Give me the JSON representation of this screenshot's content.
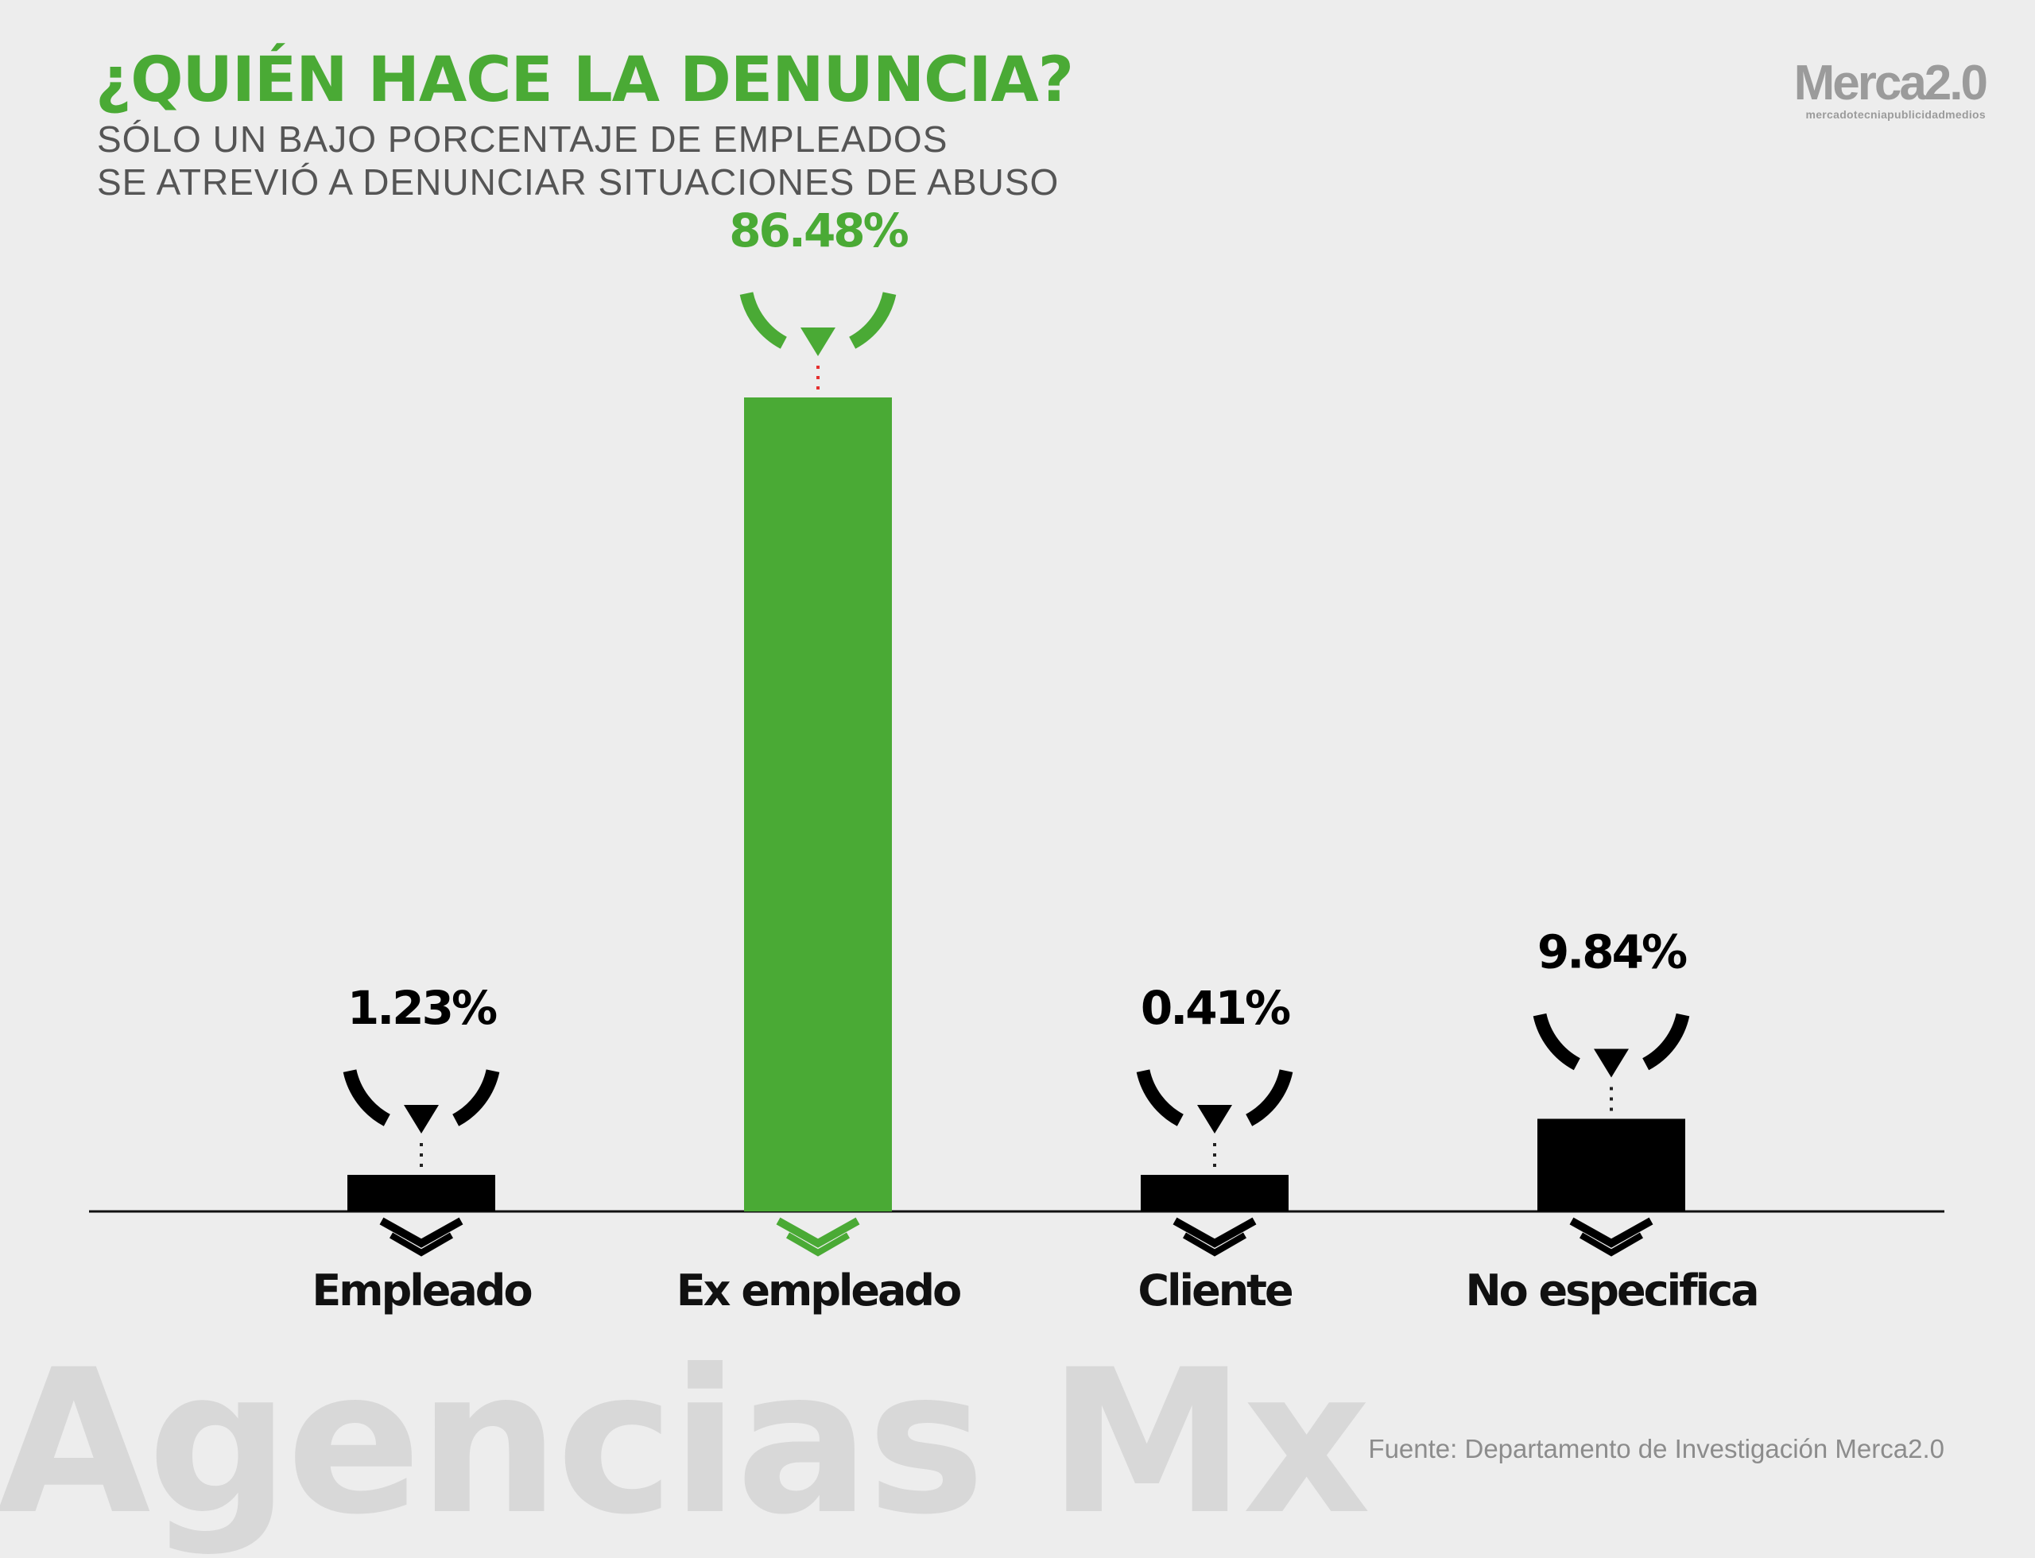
{
  "header": {
    "title": "¿QUIÉN HACE LA DENUNCIA?",
    "subtitle_lines": [
      "SÓLO UN BAJO PORCENTAJE DE EMPLEADOS",
      "SE ATREVIÓ A DENUNCIAR SITUACIONES DE ABUSO"
    ]
  },
  "logo": {
    "name": "Merca2.0",
    "tagline": "mercadotecniapublicidadmedios"
  },
  "watermark": "Agencias Mx",
  "source": "Fuente:  Departamento de Investigación Merca2.0",
  "colors": {
    "background": "#ededed",
    "accent": "#4aaa35",
    "bar": "#000000",
    "connector_highlight": "#e53030"
  },
  "chart_data": {
    "type": "bar",
    "categories": [
      "Empleado",
      "Ex empleado",
      "Cliente",
      "No especifica"
    ],
    "values": [
      1.23,
      86.48,
      0.41,
      9.84
    ],
    "value_labels": [
      "1.23%",
      "86.48%",
      "0.41%",
      "9.84%"
    ],
    "highlight_index": 1,
    "title": "¿QUIÉN HACE LA DENUNCIA?",
    "xlabel": "",
    "ylabel": "",
    "grid": false,
    "legend": "none"
  }
}
